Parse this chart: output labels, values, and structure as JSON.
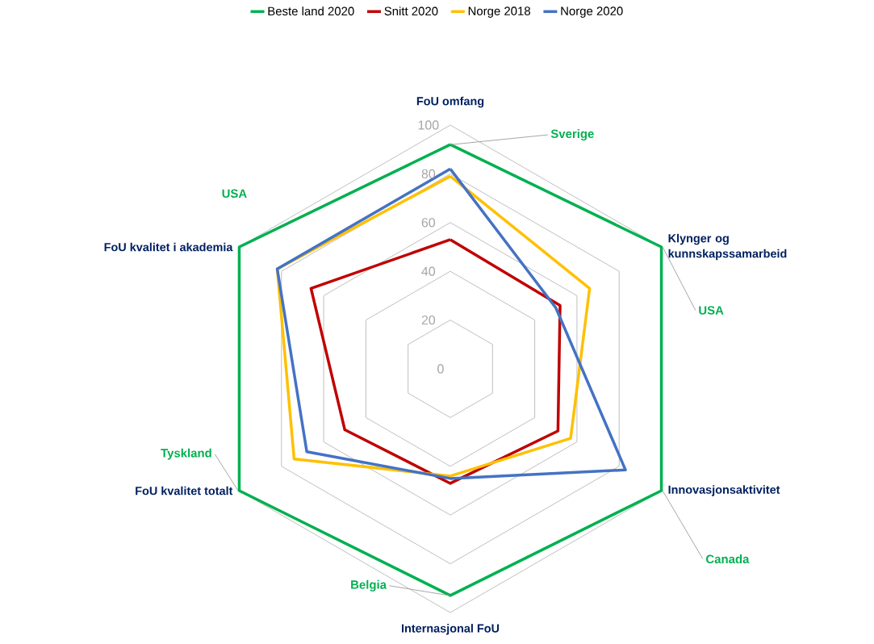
{
  "chart_data": {
    "type": "radar",
    "categories": [
      "FoU omfang",
      "Klynger og kunnskapssamarbeid",
      "Innovasjonsaktivitet",
      "Internasjonal FoU",
      "FoU kvalitet totalt",
      "FoU kvalitet i akademia"
    ],
    "series": [
      {
        "name": "Beste land 2020",
        "color": "#00b050",
        "values": [
          92,
          100,
          100,
          93,
          100,
          100
        ]
      },
      {
        "name": "Snitt 2020",
        "color": "#c00000",
        "values": [
          53,
          52,
          51,
          47,
          50,
          66
        ]
      },
      {
        "name": "Norge 2018",
        "color": "#ffc000",
        "values": [
          79,
          66,
          57,
          44,
          74,
          82
        ]
      },
      {
        "name": "Norge 2020",
        "color": "#4472c4",
        "values": [
          82,
          50,
          83,
          45,
          68,
          82
        ]
      }
    ],
    "ylim": [
      0,
      100
    ],
    "yticks": [
      {
        "value": 0,
        "label": "0"
      },
      20,
      40,
      60,
      80,
      100
    ],
    "grid": true,
    "legend": "top",
    "annotations": [
      {
        "text": "Sverige",
        "x": "FoU omfang"
      },
      {
        "text": "USA",
        "x": "Klynger og kunnskapssamarbeid"
      },
      {
        "text": "Canada",
        "x": "Innovasjonsaktivitet"
      },
      {
        "text": "Belgia",
        "x": "Internasjonal FoU"
      },
      {
        "text": "Tyskland",
        "x": "FoU kvalitet totalt"
      },
      {
        "text": "USA",
        "x": "FoU kvalitet i akademia"
      }
    ]
  }
}
